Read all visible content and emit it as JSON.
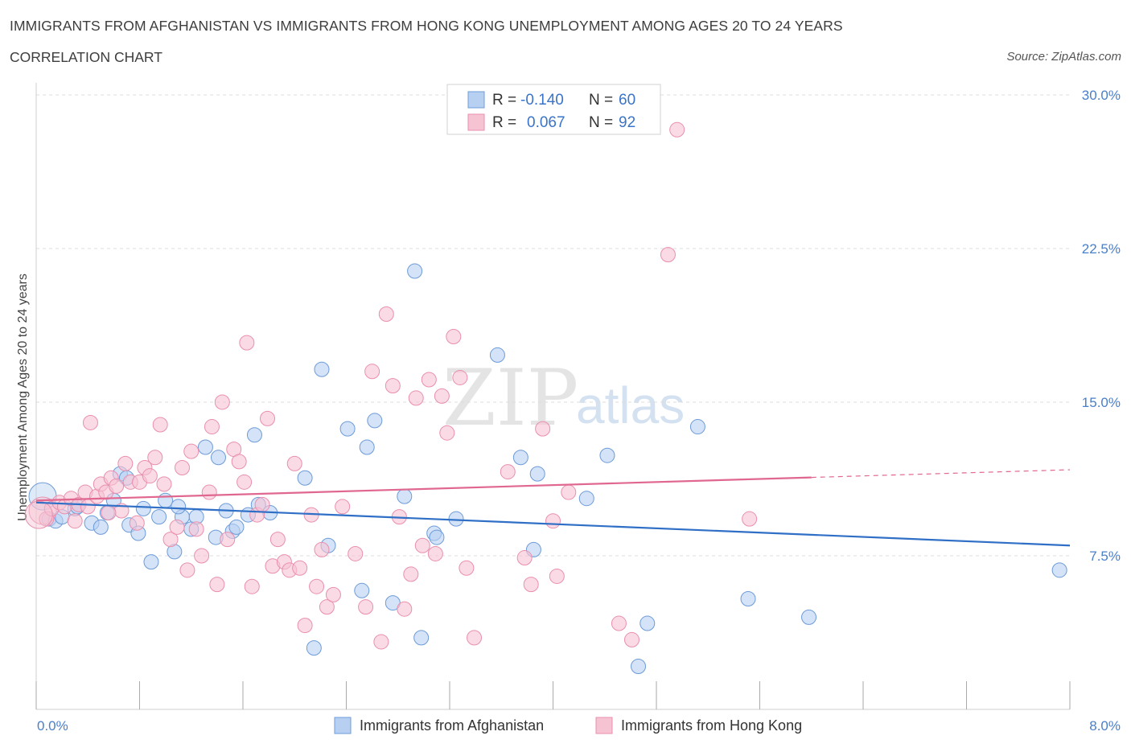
{
  "header": {
    "title": "IMMIGRANTS FROM AFGHANISTAN VS IMMIGRANTS FROM HONG KONG UNEMPLOYMENT AMONG AGES 20 TO 24 YEARS",
    "subtitle": "CORRELATION CHART",
    "source": "Source: ZipAtlas.com"
  },
  "watermark": {
    "zip": "ZIP",
    "atlas": "atlas"
  },
  "legend": {
    "rows": [
      {
        "r_label": "R =",
        "r_value": "-0.140",
        "n_label": "N =",
        "n_value": "60",
        "series": "afghanistan"
      },
      {
        "r_label": "R =",
        "r_value": "0.067",
        "n_label": "N =",
        "n_value": "92",
        "series": "hongkong"
      }
    ]
  },
  "colors": {
    "afghanistan_fill": "#b7d0f2",
    "afghanistan_stroke": "#6d9bd8",
    "afghanistan_line": "#2f6fc6",
    "hongkong_fill": "#f6c3d3",
    "hongkong_stroke": "#e98fae",
    "hongkong_line": "#e0678f",
    "axis_label": "#4a7fc9",
    "grid": "#dddddd"
  },
  "chart_data": {
    "type": "scatter",
    "title": "IMMIGRANTS FROM AFGHANISTAN VS IMMIGRANTS FROM HONG KONG UNEMPLOYMENT AMONG AGES 20 TO 24 YEARS",
    "xlabel": "",
    "ylabel": "Unemployment Among Ages 20 to 24 years",
    "xlim": [
      0,
      8
    ],
    "ylim": [
      0,
      30
    ],
    "x_tick_labels": [
      "0.0%",
      "8.0%"
    ],
    "y_ticks": [
      7.5,
      15,
      22.5,
      30
    ],
    "y_tick_labels": [
      "7.5%",
      "15.0%",
      "22.5%",
      "30.0%"
    ],
    "grid": true,
    "legend_position": "top-center",
    "series": [
      {
        "name": "Immigrants from Afghanistan",
        "key": "afghanistan",
        "trend": {
          "x0": 0,
          "y0": 10.1,
          "x1": 8,
          "y1": 8.0,
          "solid_until": 8
        },
        "points": [
          [
            0.05,
            10.4
          ],
          [
            0.1,
            9.3
          ],
          [
            0.15,
            9.2
          ],
          [
            0.2,
            9.4
          ],
          [
            0.3,
            9.8
          ],
          [
            0.43,
            9.1
          ],
          [
            0.5,
            8.9
          ],
          [
            0.55,
            9.6
          ],
          [
            0.6,
            10.2
          ],
          [
            0.65,
            11.5
          ],
          [
            0.7,
            11.3
          ],
          [
            0.72,
            9.0
          ],
          [
            0.79,
            8.6
          ],
          [
            0.83,
            9.8
          ],
          [
            0.89,
            7.2
          ],
          [
            0.95,
            9.4
          ],
          [
            1.0,
            10.2
          ],
          [
            1.07,
            7.7
          ],
          [
            1.13,
            9.4
          ],
          [
            1.2,
            8.8
          ],
          [
            1.24,
            9.4
          ],
          [
            1.31,
            12.8
          ],
          [
            1.39,
            8.4
          ],
          [
            1.41,
            12.3
          ],
          [
            1.47,
            9.7
          ],
          [
            1.52,
            8.7
          ],
          [
            1.55,
            8.9
          ],
          [
            1.64,
            9.5
          ],
          [
            1.69,
            13.4
          ],
          [
            1.72,
            10.0
          ],
          [
            1.81,
            9.6
          ],
          [
            2.08,
            11.3
          ],
          [
            2.15,
            3.0
          ],
          [
            2.21,
            16.6
          ],
          [
            2.26,
            8.0
          ],
          [
            2.41,
            13.7
          ],
          [
            2.52,
            5.8
          ],
          [
            2.56,
            12.8
          ],
          [
            2.62,
            14.1
          ],
          [
            2.76,
            5.2
          ],
          [
            2.85,
            10.4
          ],
          [
            2.93,
            21.4
          ],
          [
            2.98,
            3.5
          ],
          [
            3.08,
            8.6
          ],
          [
            3.1,
            8.4
          ],
          [
            3.25,
            9.3
          ],
          [
            3.57,
            17.3
          ],
          [
            3.75,
            12.3
          ],
          [
            3.85,
            7.8
          ],
          [
            3.88,
            11.5
          ],
          [
            4.26,
            10.3
          ],
          [
            4.42,
            12.4
          ],
          [
            4.66,
            2.1
          ],
          [
            4.73,
            4.2
          ],
          [
            5.12,
            13.8
          ],
          [
            5.51,
            5.4
          ],
          [
            5.98,
            4.5
          ],
          [
            7.92,
            6.8
          ],
          [
            0.32,
            9.9
          ],
          [
            1.1,
            9.9
          ]
        ]
      },
      {
        "name": "Immigrants from Hong Kong",
        "key": "hongkong",
        "trend": {
          "x0": 0,
          "y0": 10.2,
          "x1": 8,
          "y1": 11.7,
          "solid_until": 6.0
        },
        "points": [
          [
            0.05,
            9.7
          ],
          [
            0.08,
            9.3
          ],
          [
            0.12,
            9.8
          ],
          [
            0.18,
            10.1
          ],
          [
            0.22,
            9.9
          ],
          [
            0.27,
            10.3
          ],
          [
            0.3,
            9.2
          ],
          [
            0.33,
            10.0
          ],
          [
            0.38,
            10.6
          ],
          [
            0.4,
            9.9
          ],
          [
            0.42,
            14.0
          ],
          [
            0.47,
            10.4
          ],
          [
            0.5,
            11.0
          ],
          [
            0.54,
            10.6
          ],
          [
            0.58,
            11.3
          ],
          [
            0.62,
            10.9
          ],
          [
            0.66,
            9.7
          ],
          [
            0.69,
            12.0
          ],
          [
            0.73,
            11.1
          ],
          [
            0.78,
            9.1
          ],
          [
            0.8,
            11.1
          ],
          [
            0.84,
            11.8
          ],
          [
            0.88,
            11.4
          ],
          [
            0.92,
            12.3
          ],
          [
            0.96,
            13.9
          ],
          [
            0.99,
            11.0
          ],
          [
            1.04,
            8.3
          ],
          [
            1.09,
            8.9
          ],
          [
            1.13,
            11.8
          ],
          [
            1.17,
            6.8
          ],
          [
            1.2,
            12.6
          ],
          [
            1.24,
            8.8
          ],
          [
            1.28,
            7.5
          ],
          [
            1.34,
            10.6
          ],
          [
            1.36,
            13.8
          ],
          [
            1.4,
            6.1
          ],
          [
            1.44,
            15.0
          ],
          [
            1.48,
            8.3
          ],
          [
            1.53,
            12.7
          ],
          [
            1.57,
            12.1
          ],
          [
            1.61,
            11.1
          ],
          [
            1.63,
            17.9
          ],
          [
            1.67,
            6.0
          ],
          [
            1.71,
            9.5
          ],
          [
            1.75,
            10.0
          ],
          [
            1.79,
            14.2
          ],
          [
            1.83,
            7.0
          ],
          [
            1.87,
            8.3
          ],
          [
            1.92,
            7.2
          ],
          [
            1.96,
            6.8
          ],
          [
            2.0,
            12.0
          ],
          [
            2.04,
            6.9
          ],
          [
            2.08,
            4.1
          ],
          [
            2.13,
            9.5
          ],
          [
            2.17,
            6.0
          ],
          [
            2.21,
            7.8
          ],
          [
            2.25,
            5.0
          ],
          [
            2.3,
            5.6
          ],
          [
            2.37,
            9.9
          ],
          [
            2.47,
            7.6
          ],
          [
            2.55,
            5.0
          ],
          [
            2.6,
            16.5
          ],
          [
            2.67,
            3.3
          ],
          [
            2.71,
            19.3
          ],
          [
            2.76,
            15.8
          ],
          [
            2.81,
            9.4
          ],
          [
            2.85,
            4.9
          ],
          [
            2.9,
            6.6
          ],
          [
            2.94,
            15.2
          ],
          [
            2.99,
            8.0
          ],
          [
            3.04,
            16.1
          ],
          [
            3.09,
            7.6
          ],
          [
            3.14,
            15.3
          ],
          [
            3.18,
            13.5
          ],
          [
            3.23,
            18.2
          ],
          [
            3.28,
            16.2
          ],
          [
            3.33,
            6.9
          ],
          [
            3.39,
            3.5
          ],
          [
            3.65,
            11.6
          ],
          [
            3.78,
            7.4
          ],
          [
            3.83,
            6.1
          ],
          [
            3.92,
            13.7
          ],
          [
            4.0,
            9.2
          ],
          [
            4.03,
            6.5
          ],
          [
            4.12,
            10.6
          ],
          [
            4.51,
            4.2
          ],
          [
            4.61,
            3.4
          ],
          [
            4.89,
            22.2
          ],
          [
            5.52,
            9.3
          ],
          [
            4.96,
            28.3
          ],
          [
            0.02,
            9.5
          ],
          [
            0.56,
            9.6
          ]
        ]
      }
    ]
  },
  "bottom_legend": {
    "items": [
      {
        "label": "Immigrants from Afghanistan",
        "series": "afghanistan"
      },
      {
        "label": "Immigrants from Hong Kong",
        "series": "hongkong"
      }
    ]
  }
}
